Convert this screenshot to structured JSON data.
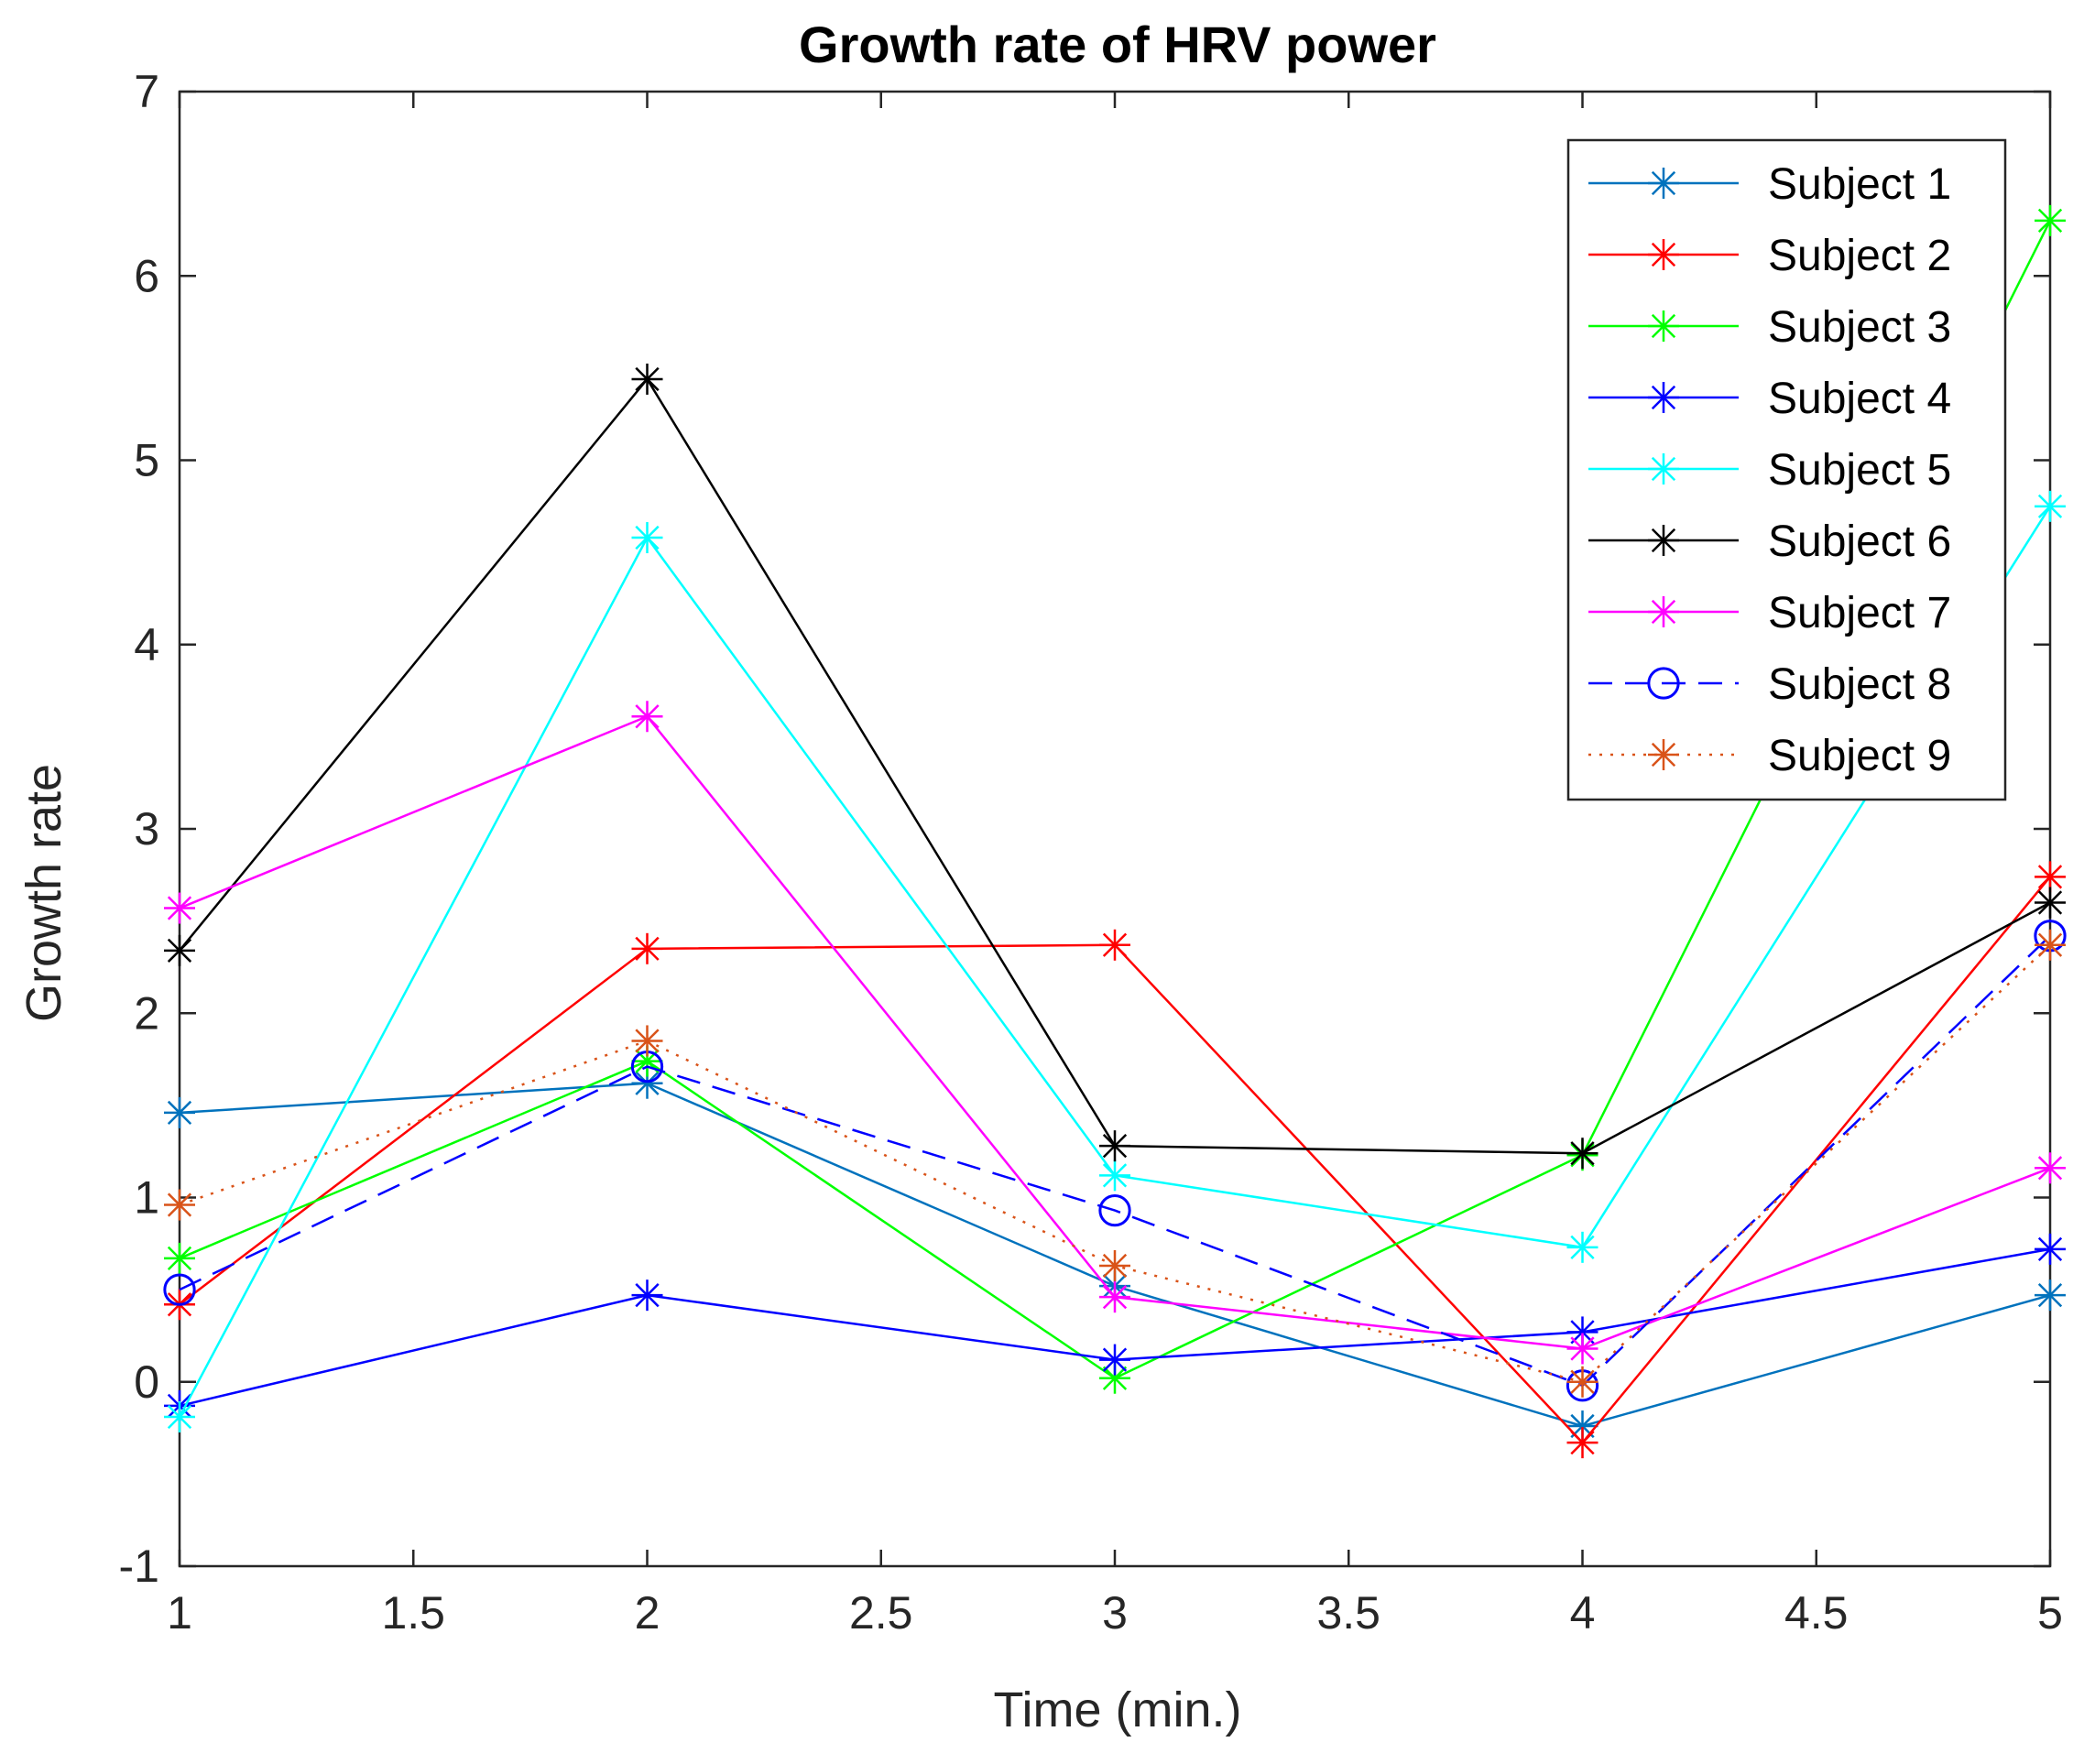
{
  "chart_data": {
    "type": "line",
    "title": "Growth rate of HRV power",
    "xlabel": "Time (min.)",
    "ylabel": "Growth rate",
    "x": [
      1,
      2,
      3,
      4,
      5
    ],
    "xlim": [
      1,
      5
    ],
    "ylim": [
      -1,
      7
    ],
    "xticks": [
      1,
      1.5,
      2,
      2.5,
      3,
      3.5,
      4,
      4.5,
      5
    ],
    "xtick_labels": [
      "1",
      "1.5",
      "2",
      "2.5",
      "3",
      "3.5",
      "4",
      "4.5",
      "5"
    ],
    "yticks": [
      -1,
      0,
      1,
      2,
      3,
      4,
      5,
      6,
      7
    ],
    "ytick_labels": [
      "-1",
      "0",
      "1",
      "2",
      "3",
      "4",
      "5",
      "6",
      "7"
    ],
    "grid": false,
    "legend_position": "top-right",
    "series": [
      {
        "name": "Subject 1",
        "color": "#0072BD",
        "line": "solid",
        "marker": "asterisk",
        "values": [
          1.46,
          1.62,
          0.52,
          -0.24,
          0.47
        ]
      },
      {
        "name": "Subject 2",
        "color": "#FF0000",
        "line": "solid",
        "marker": "asterisk",
        "values": [
          0.42,
          2.35,
          2.37,
          -0.33,
          2.74
        ]
      },
      {
        "name": "Subject 3",
        "color": "#00FF00",
        "line": "solid",
        "marker": "asterisk",
        "values": [
          0.67,
          1.74,
          0.02,
          1.23,
          6.3
        ]
      },
      {
        "name": "Subject 4",
        "color": "#0000FF",
        "line": "solid",
        "marker": "asterisk",
        "values": [
          -0.13,
          0.47,
          0.12,
          0.27,
          0.72
        ]
      },
      {
        "name": "Subject 5",
        "color": "#00FFFF",
        "line": "solid",
        "marker": "asterisk",
        "values": [
          -0.19,
          4.58,
          1.12,
          0.73,
          4.75
        ]
      },
      {
        "name": "Subject 6",
        "color": "#000000",
        "line": "solid",
        "marker": "asterisk",
        "values": [
          2.34,
          5.44,
          1.28,
          1.24,
          2.6
        ]
      },
      {
        "name": "Subject 7",
        "color": "#FF00FF",
        "line": "solid",
        "marker": "asterisk",
        "values": [
          2.57,
          3.61,
          0.46,
          0.18,
          1.16
        ]
      },
      {
        "name": "Subject 8",
        "color": "#0000FF",
        "line": "dashed",
        "marker": "circle",
        "values": [
          0.5,
          1.71,
          0.93,
          -0.02,
          2.42
        ]
      },
      {
        "name": "Subject 9",
        "color": "#D95319",
        "line": "dotted",
        "marker": "asterisk",
        "values": [
          0.96,
          1.85,
          0.63,
          0.0,
          2.37
        ]
      }
    ]
  }
}
